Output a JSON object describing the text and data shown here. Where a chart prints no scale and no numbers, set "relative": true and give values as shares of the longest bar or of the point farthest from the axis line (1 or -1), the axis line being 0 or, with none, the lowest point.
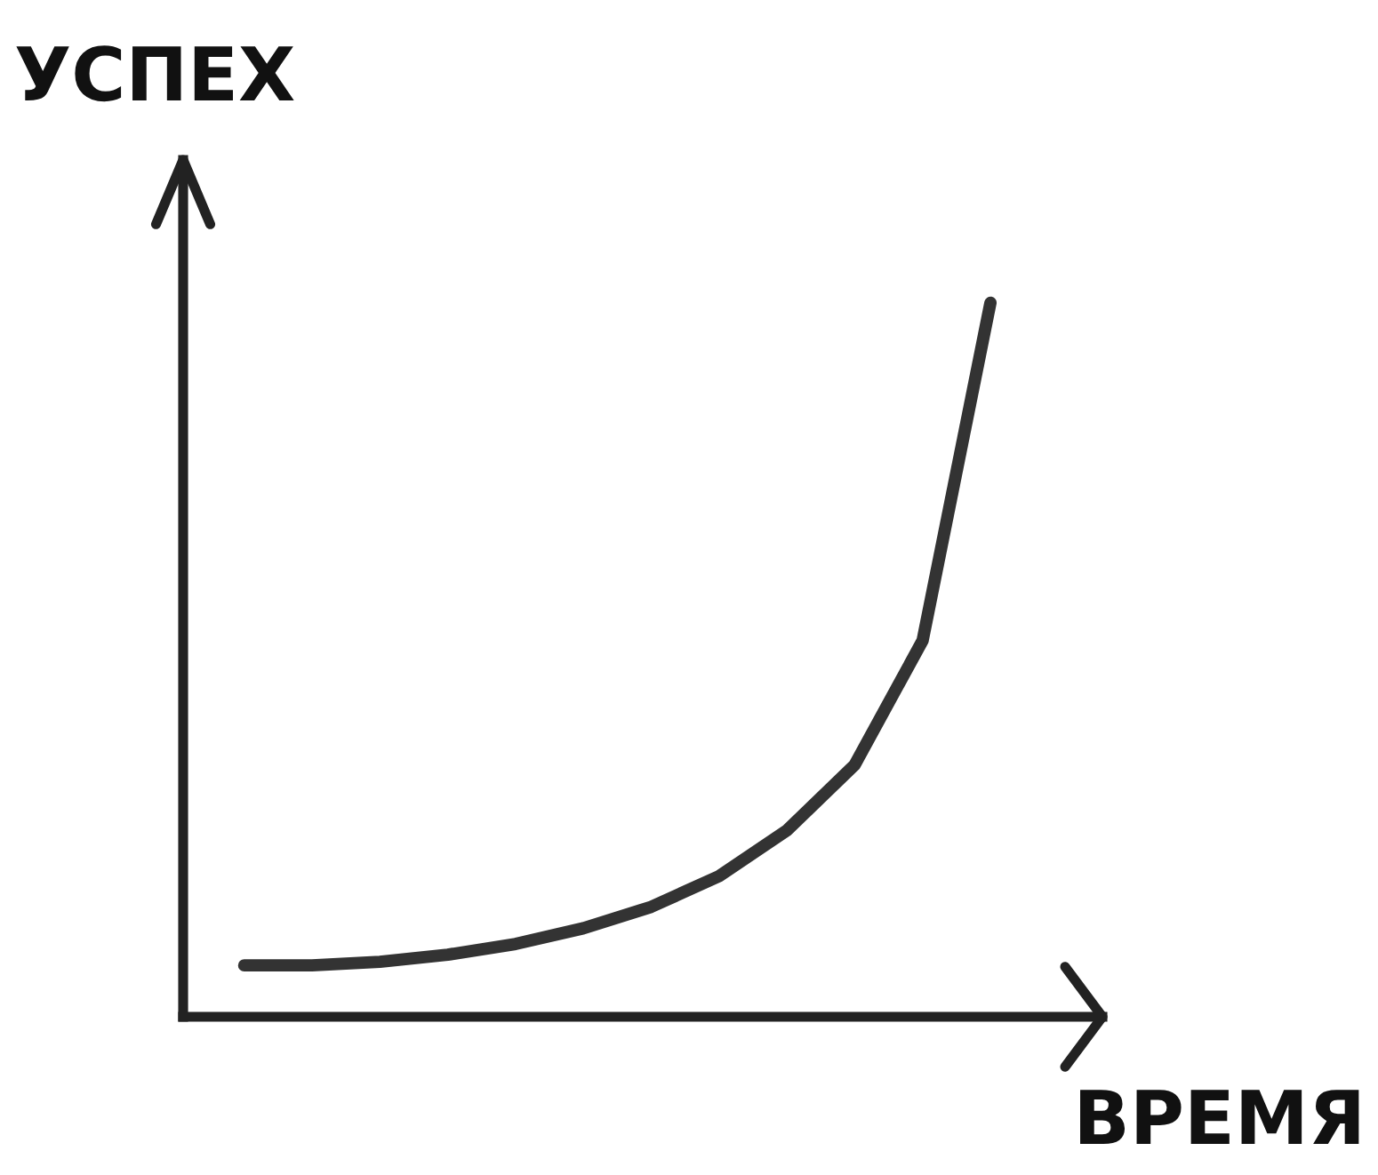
{
  "chart_data": {
    "type": "line",
    "relative": true,
    "xlabel": "ВРЕМЯ",
    "ylabel": "УСПЕХ",
    "categories": [
      null,
      null,
      null,
      null,
      null,
      null,
      null,
      null,
      null,
      null,
      null,
      null
    ],
    "series": [
      {
        "color": "#333333",
        "values": [
          0.072,
          0.072,
          0.077,
          0.087,
          0.102,
          0.124,
          0.154,
          0.197,
          0.261,
          0.353,
          0.527,
          1
        ]
      }
    ]
  }
}
